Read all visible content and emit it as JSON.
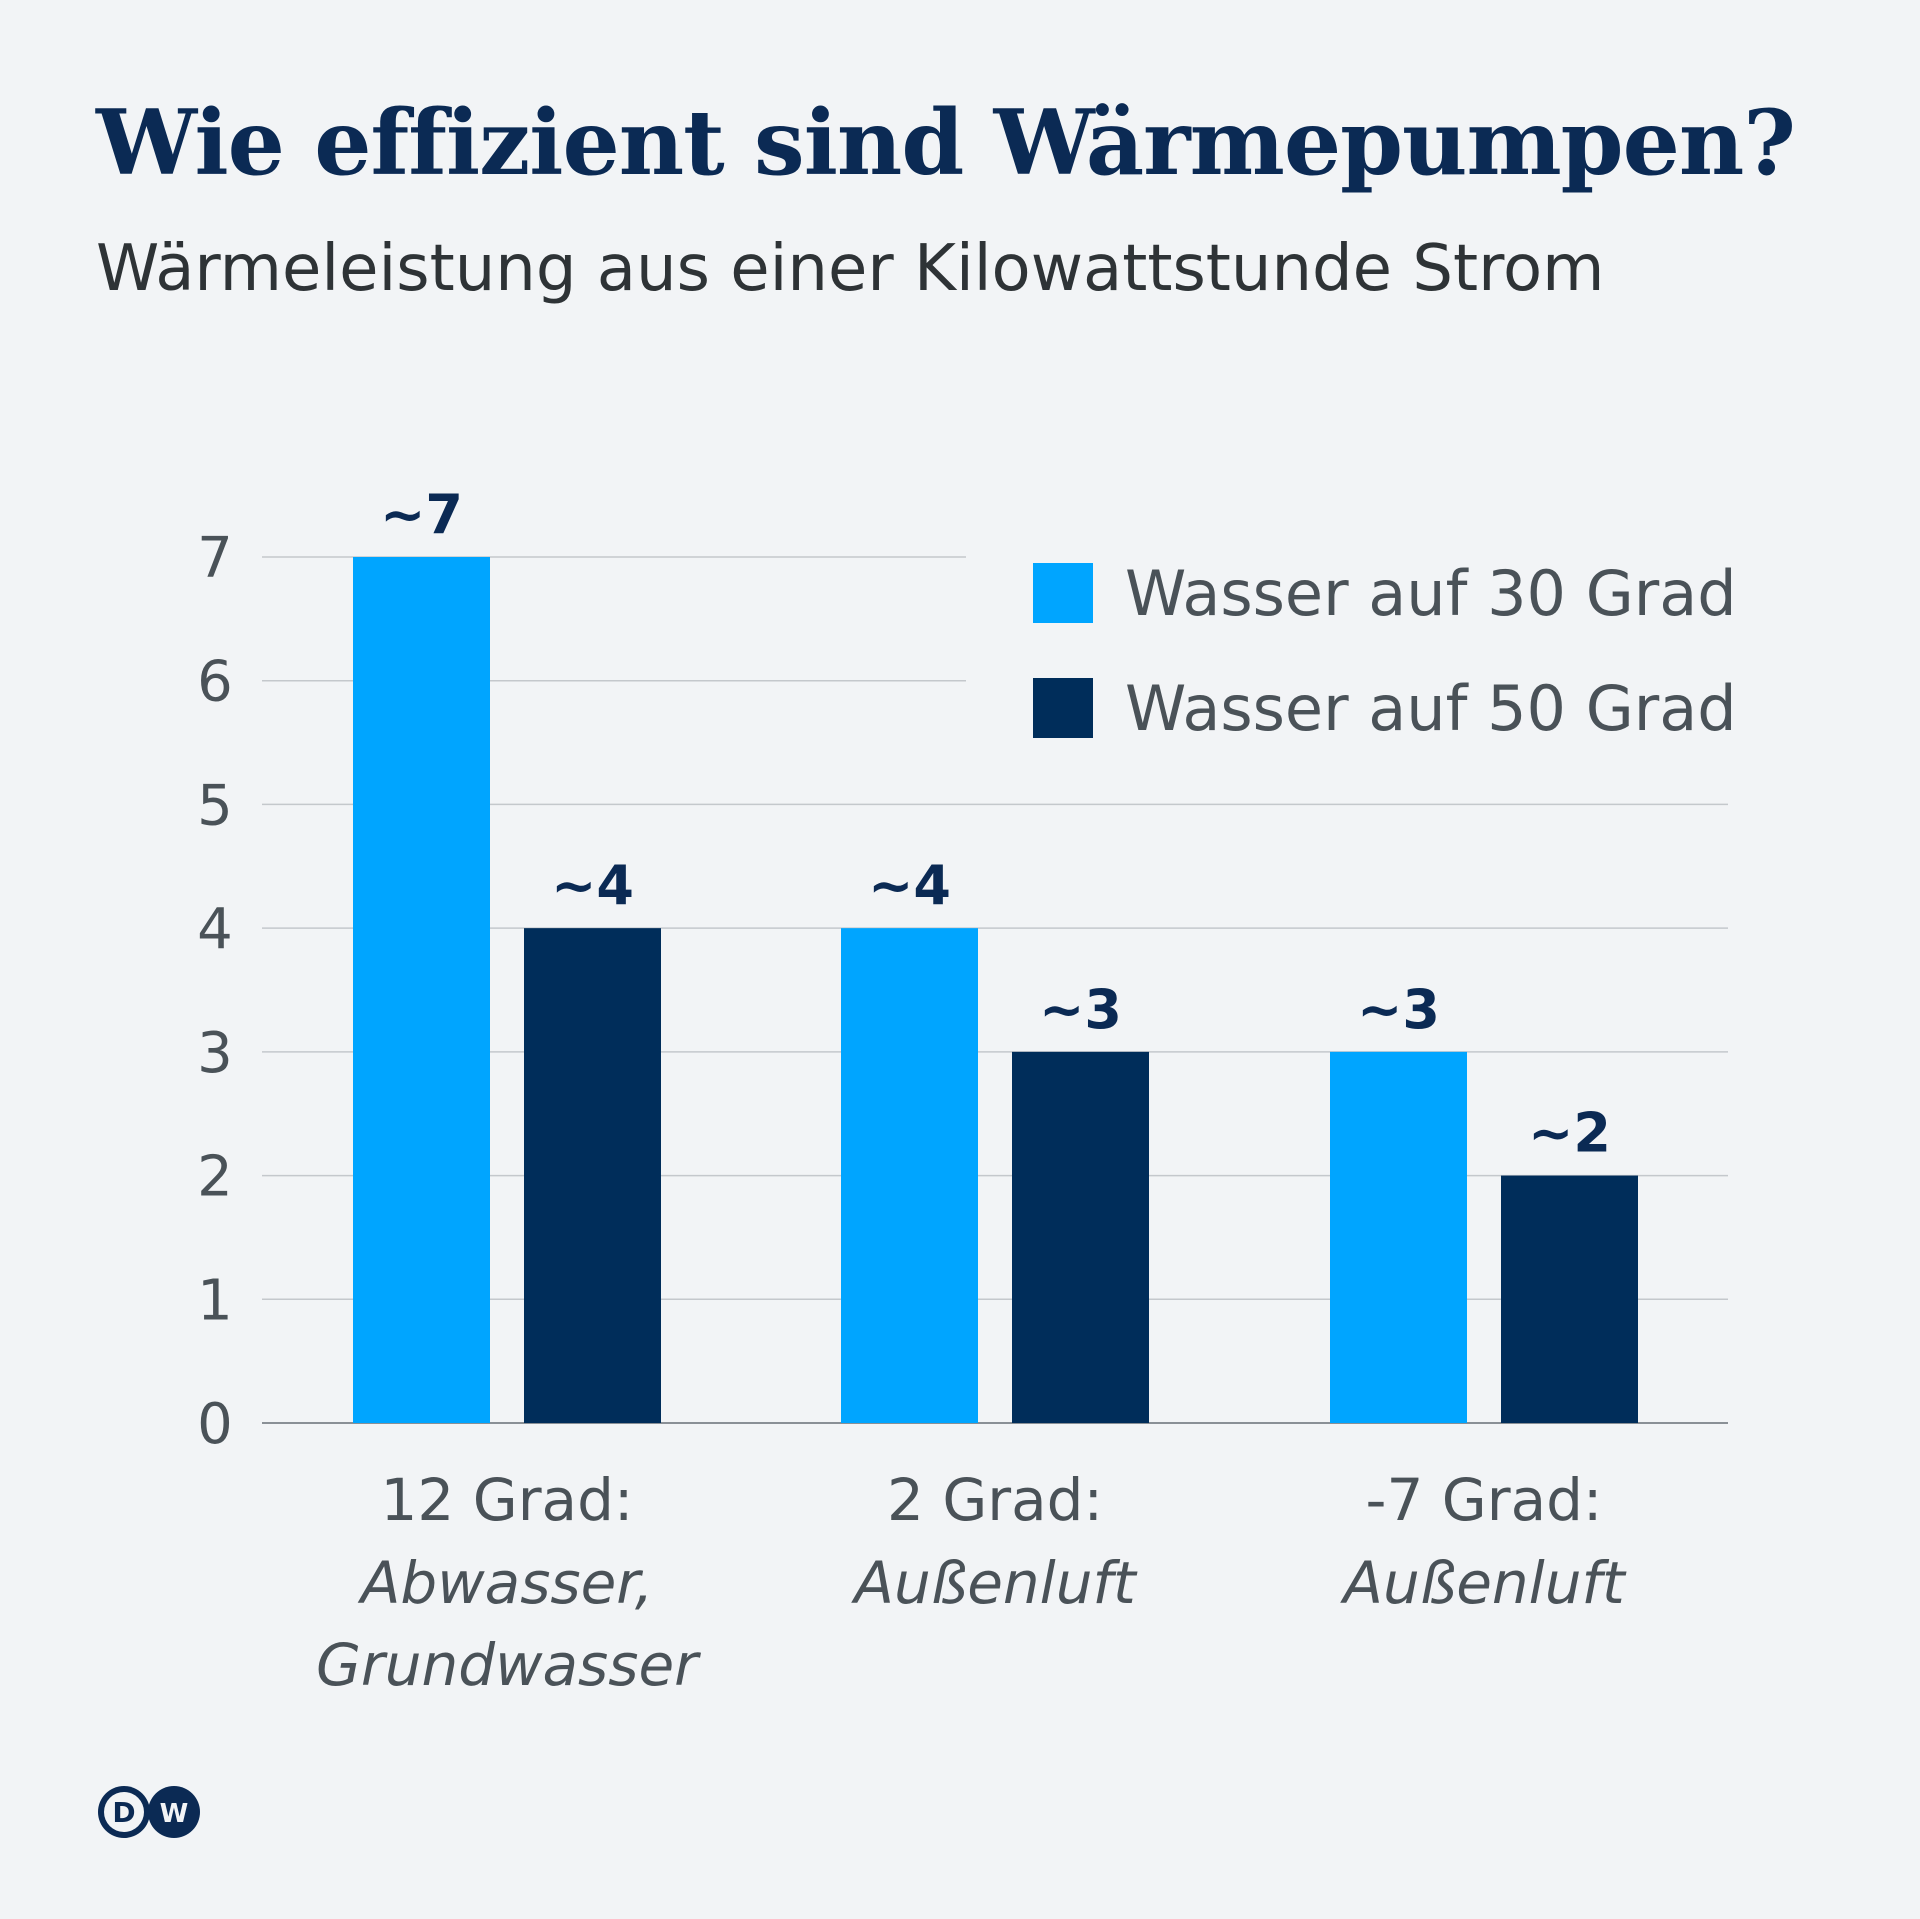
{
  "title": "Wie effizient sind Wärmepumpen?",
  "subtitle": "Wärmeleistung aus einer Kilowattstunde Strom",
  "logo": "DW",
  "chart_data": {
    "type": "bar",
    "categories": [
      {
        "main": "12 Grad:",
        "sub": [
          "Abwasser,",
          "Grundwasser"
        ]
      },
      {
        "main": "2 Grad:",
        "sub": [
          "Außenluft"
        ]
      },
      {
        "main": "-7 Grad:",
        "sub": [
          "Außenluft"
        ]
      }
    ],
    "series": [
      {
        "name": "Wasser auf 30 Grad",
        "color": "#00a5ff",
        "values": [
          7,
          4,
          3
        ],
        "labels": [
          "~7",
          "~4",
          "~3"
        ]
      },
      {
        "name": "Wasser auf 50 Grad",
        "color": "#002d5a",
        "values": [
          4,
          3,
          2
        ],
        "labels": [
          "~4",
          "~3",
          "~2"
        ]
      }
    ],
    "yticks": [
      "0",
      "1",
      "2",
      "3",
      "4",
      "5",
      "6",
      "7"
    ],
    "ylim": [
      0,
      7
    ],
    "grid": true,
    "legend_position": "top-right"
  }
}
